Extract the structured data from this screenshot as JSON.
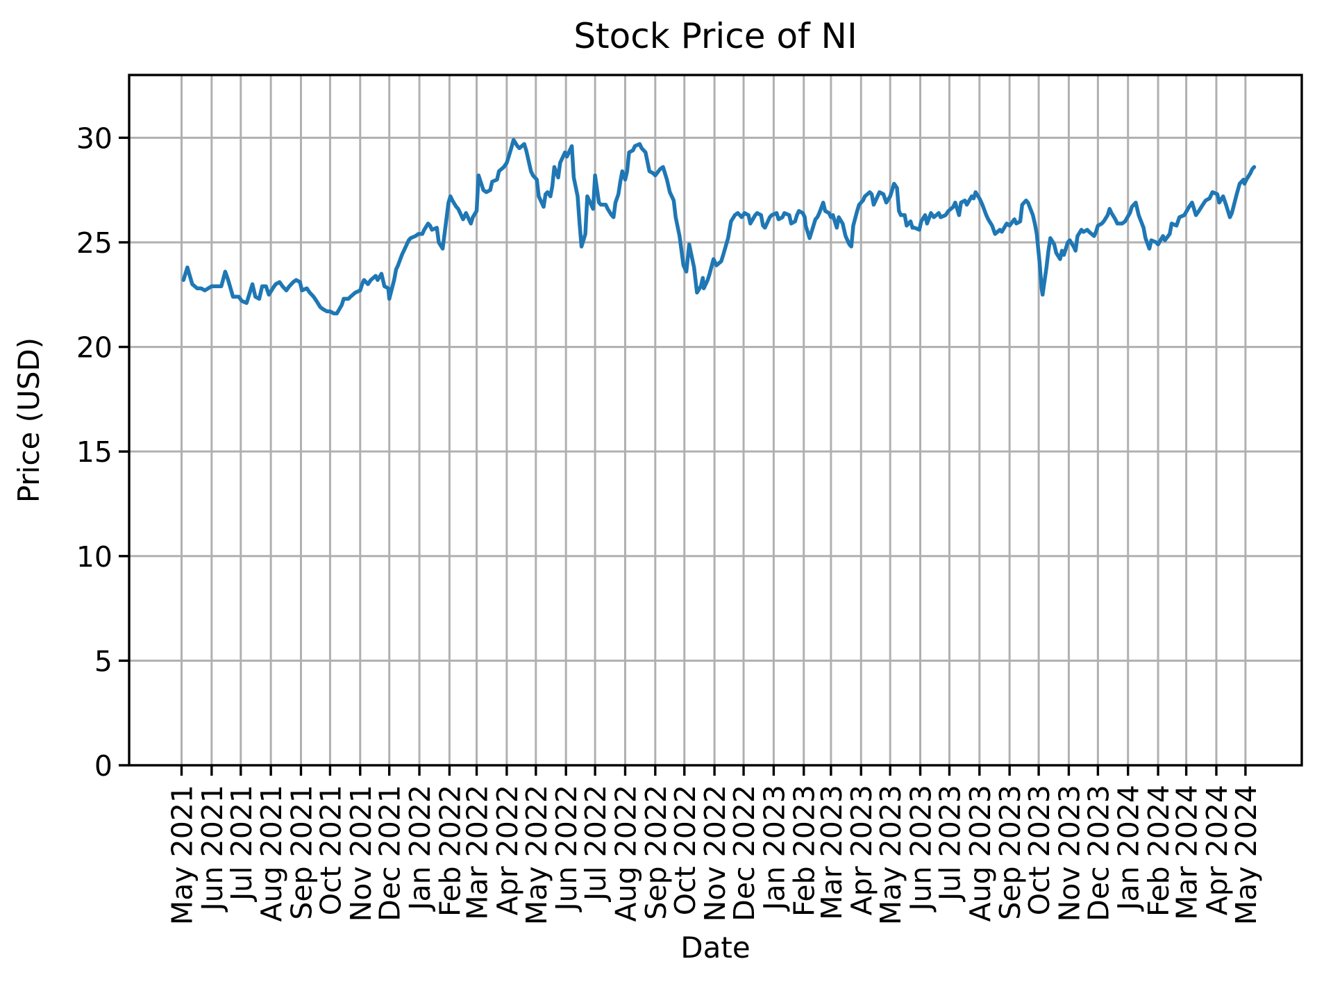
{
  "title": "Stock Price of NI",
  "xlabel": "Date",
  "ylabel": "Price (USD)",
  "chart_data": {
    "type": "line",
    "series_name": "NI",
    "line_color": "#1f77b4",
    "grid_color": "#b0b0b0",
    "axis_color": "#000000",
    "grid": true,
    "legend": "none",
    "y_ticks": [
      0,
      5,
      10,
      15,
      20,
      25,
      30
    ],
    "x_tick_labels": [
      "May 2021",
      "Jun 2021",
      "Jul 2021",
      "Aug 2021",
      "Sep 2021",
      "Oct 2021",
      "Nov 2021",
      "Dec 2021",
      "Jan 2022",
      "Feb 2022",
      "Mar 2022",
      "Apr 2022",
      "May 2022",
      "Jun 2022",
      "Jul 2022",
      "Aug 2022",
      "Sep 2022",
      "Oct 2022",
      "Nov 2022",
      "Dec 2022",
      "Jan 2023",
      "Feb 2023",
      "Mar 2023",
      "Apr 2023",
      "May 2023",
      "Jun 2023",
      "Jul 2023",
      "Aug 2023",
      "Sep 2023",
      "Oct 2023",
      "Nov 2023",
      "Dec 2023",
      "Jan 2024",
      "Feb 2024",
      "Mar 2024",
      "Apr 2024",
      "May 2024"
    ],
    "x_range": [
      "2021-03-08",
      "2024-06-28"
    ],
    "y_range": [
      0,
      33
    ],
    "points": [
      [
        "2021-05-03",
        23.2
      ],
      [
        "2021-05-07",
        23.8
      ],
      [
        "2021-05-12",
        23.0
      ],
      [
        "2021-05-17",
        22.8
      ],
      [
        "2021-05-21",
        22.8
      ],
      [
        "2021-05-25",
        22.7
      ],
      [
        "2021-06-01",
        22.9
      ],
      [
        "2021-06-07",
        22.9
      ],
      [
        "2021-06-11",
        22.9
      ],
      [
        "2021-06-15",
        23.6
      ],
      [
        "2021-06-18",
        23.2
      ],
      [
        "2021-06-23",
        22.4
      ],
      [
        "2021-06-29",
        22.4
      ],
      [
        "2021-07-02",
        22.2
      ],
      [
        "2021-07-07",
        22.1
      ],
      [
        "2021-07-13",
        23.0
      ],
      [
        "2021-07-16",
        22.4
      ],
      [
        "2021-07-20",
        22.3
      ],
      [
        "2021-07-23",
        22.9
      ],
      [
        "2021-07-27",
        22.9
      ],
      [
        "2021-07-30",
        22.5
      ],
      [
        "2021-08-03",
        22.8
      ],
      [
        "2021-08-06",
        23.0
      ],
      [
        "2021-08-10",
        23.1
      ],
      [
        "2021-08-13",
        22.9
      ],
      [
        "2021-08-17",
        22.7
      ],
      [
        "2021-08-20",
        22.9
      ],
      [
        "2021-08-24",
        23.1
      ],
      [
        "2021-08-27",
        23.2
      ],
      [
        "2021-08-31",
        23.1
      ],
      [
        "2021-09-02",
        22.7
      ],
      [
        "2021-09-07",
        22.8
      ],
      [
        "2021-09-10",
        22.6
      ],
      [
        "2021-09-14",
        22.4
      ],
      [
        "2021-09-17",
        22.2
      ],
      [
        "2021-09-21",
        21.9
      ],
      [
        "2021-09-24",
        21.8
      ],
      [
        "2021-09-28",
        21.7
      ],
      [
        "2021-10-01",
        21.7
      ],
      [
        "2021-10-05",
        21.6
      ],
      [
        "2021-10-08",
        21.6
      ],
      [
        "2021-10-13",
        22.0
      ],
      [
        "2021-10-15",
        22.3
      ],
      [
        "2021-10-20",
        22.3
      ],
      [
        "2021-10-22",
        22.4
      ],
      [
        "2021-10-27",
        22.6
      ],
      [
        "2021-11-01",
        22.7
      ],
      [
        "2021-11-03",
        23.0
      ],
      [
        "2021-11-05",
        23.2
      ],
      [
        "2021-11-09",
        23.0
      ],
      [
        "2021-11-12",
        23.2
      ],
      [
        "2021-11-17",
        23.4
      ],
      [
        "2021-11-19",
        23.2
      ],
      [
        "2021-11-23",
        23.5
      ],
      [
        "2021-11-26",
        22.9
      ],
      [
        "2021-11-30",
        22.8
      ],
      [
        "2021-12-01",
        22.3
      ],
      [
        "2021-12-06",
        23.2
      ],
      [
        "2021-12-08",
        23.7
      ],
      [
        "2021-12-10",
        23.9
      ],
      [
        "2021-12-14",
        24.4
      ],
      [
        "2021-12-17",
        24.7
      ],
      [
        "2021-12-21",
        25.1
      ],
      [
        "2021-12-23",
        25.2
      ],
      [
        "2021-12-28",
        25.3
      ],
      [
        "2021-12-31",
        25.4
      ],
      [
        "2022-01-04",
        25.4
      ],
      [
        "2022-01-06",
        25.6
      ],
      [
        "2022-01-10",
        25.9
      ],
      [
        "2022-01-12",
        25.8
      ],
      [
        "2022-01-14",
        25.6
      ],
      [
        "2022-01-19",
        25.7
      ],
      [
        "2022-01-21",
        25.0
      ],
      [
        "2022-01-25",
        24.7
      ],
      [
        "2022-01-28",
        25.8
      ],
      [
        "2022-01-31",
        26.9
      ],
      [
        "2022-02-02",
        27.2
      ],
      [
        "2022-02-04",
        27.0
      ],
      [
        "2022-02-08",
        26.7
      ],
      [
        "2022-02-10",
        26.6
      ],
      [
        "2022-02-15",
        26.1
      ],
      [
        "2022-02-18",
        26.4
      ],
      [
        "2022-02-23",
        25.9
      ],
      [
        "2022-02-25",
        26.2
      ],
      [
        "2022-03-01",
        26.5
      ],
      [
        "2022-03-03",
        28.2
      ],
      [
        "2022-03-08",
        27.5
      ],
      [
        "2022-03-11",
        27.4
      ],
      [
        "2022-03-15",
        27.5
      ],
      [
        "2022-03-17",
        27.9
      ],
      [
        "2022-03-22",
        28.0
      ],
      [
        "2022-03-24",
        28.4
      ],
      [
        "2022-03-29",
        28.6
      ],
      [
        "2022-04-01",
        28.8
      ],
      [
        "2022-04-05",
        29.4
      ],
      [
        "2022-04-08",
        29.9
      ],
      [
        "2022-04-12",
        29.6
      ],
      [
        "2022-04-14",
        29.5
      ],
      [
        "2022-04-19",
        29.7
      ],
      [
        "2022-04-21",
        29.4
      ],
      [
        "2022-04-26",
        28.4
      ],
      [
        "2022-04-28",
        28.2
      ],
      [
        "2022-05-02",
        28.0
      ],
      [
        "2022-05-04",
        27.2
      ],
      [
        "2022-05-09",
        26.7
      ],
      [
        "2022-05-11",
        27.3
      ],
      [
        "2022-05-13",
        27.4
      ],
      [
        "2022-05-16",
        27.2
      ],
      [
        "2022-05-18",
        27.7
      ],
      [
        "2022-05-20",
        28.6
      ],
      [
        "2022-05-24",
        28.1
      ],
      [
        "2022-05-26",
        28.8
      ],
      [
        "2022-05-31",
        29.3
      ],
      [
        "2022-06-02",
        29.1
      ],
      [
        "2022-06-07",
        29.6
      ],
      [
        "2022-06-09",
        28.1
      ],
      [
        "2022-06-13",
        27.2
      ],
      [
        "2022-06-15",
        25.9
      ],
      [
        "2022-06-17",
        24.8
      ],
      [
        "2022-06-21",
        25.4
      ],
      [
        "2022-06-23",
        27.2
      ],
      [
        "2022-06-27",
        26.8
      ],
      [
        "2022-06-29",
        26.6
      ],
      [
        "2022-07-01",
        28.2
      ],
      [
        "2022-07-05",
        26.9
      ],
      [
        "2022-07-07",
        26.8
      ],
      [
        "2022-07-12",
        26.8
      ],
      [
        "2022-07-14",
        26.6
      ],
      [
        "2022-07-18",
        26.3
      ],
      [
        "2022-07-20",
        26.2
      ],
      [
        "2022-07-22",
        26.9
      ],
      [
        "2022-07-25",
        27.3
      ],
      [
        "2022-07-27",
        27.9
      ],
      [
        "2022-07-29",
        28.4
      ],
      [
        "2022-08-01",
        28.0
      ],
      [
        "2022-08-03",
        28.4
      ],
      [
        "2022-08-05",
        29.3
      ],
      [
        "2022-08-09",
        29.4
      ],
      [
        "2022-08-11",
        29.6
      ],
      [
        "2022-08-16",
        29.7
      ],
      [
        "2022-08-18",
        29.5
      ],
      [
        "2022-08-22",
        29.3
      ],
      [
        "2022-08-26",
        28.4
      ],
      [
        "2022-08-30",
        28.3
      ],
      [
        "2022-09-01",
        28.2
      ],
      [
        "2022-09-06",
        28.5
      ],
      [
        "2022-09-09",
        28.6
      ],
      [
        "2022-09-13",
        28.0
      ],
      [
        "2022-09-16",
        27.4
      ],
      [
        "2022-09-20",
        27.0
      ],
      [
        "2022-09-22",
        26.2
      ],
      [
        "2022-09-26",
        25.3
      ],
      [
        "2022-09-28",
        24.6
      ],
      [
        "2022-09-30",
        23.9
      ],
      [
        "2022-10-03",
        23.6
      ],
      [
        "2022-10-06",
        24.9
      ],
      [
        "2022-10-11",
        23.8
      ],
      [
        "2022-10-13",
        23.0
      ],
      [
        "2022-10-14",
        22.6
      ],
      [
        "2022-10-18",
        22.9
      ],
      [
        "2022-10-20",
        23.3
      ],
      [
        "2022-10-21",
        22.8
      ],
      [
        "2022-10-25",
        23.2
      ],
      [
        "2022-10-27",
        23.5
      ],
      [
        "2022-10-31",
        24.2
      ],
      [
        "2022-11-03",
        23.9
      ],
      [
        "2022-11-08",
        24.1
      ],
      [
        "2022-11-10",
        24.4
      ],
      [
        "2022-11-15",
        25.2
      ],
      [
        "2022-11-18",
        26.0
      ],
      [
        "2022-11-22",
        26.3
      ],
      [
        "2022-11-25",
        26.4
      ],
      [
        "2022-11-29",
        26.2
      ],
      [
        "2022-12-02",
        26.4
      ],
      [
        "2022-12-06",
        26.3
      ],
      [
        "2022-12-08",
        25.9
      ],
      [
        "2022-12-13",
        26.3
      ],
      [
        "2022-12-15",
        26.4
      ],
      [
        "2022-12-19",
        26.3
      ],
      [
        "2022-12-21",
        25.8
      ],
      [
        "2022-12-23",
        25.7
      ],
      [
        "2022-12-28",
        26.2
      ],
      [
        "2022-12-30",
        26.3
      ],
      [
        "2023-01-04",
        26.4
      ],
      [
        "2023-01-06",
        26.1
      ],
      [
        "2023-01-10",
        26.2
      ],
      [
        "2023-01-12",
        26.4
      ],
      [
        "2023-01-17",
        26.3
      ],
      [
        "2023-01-19",
        25.9
      ],
      [
        "2023-01-23",
        26.0
      ],
      [
        "2023-01-25",
        26.3
      ],
      [
        "2023-01-27",
        26.5
      ],
      [
        "2023-01-31",
        26.4
      ],
      [
        "2023-02-02",
        26.2
      ],
      [
        "2023-02-03",
        25.8
      ],
      [
        "2023-02-07",
        25.2
      ],
      [
        "2023-02-09",
        25.5
      ],
      [
        "2023-02-13",
        26.1
      ],
      [
        "2023-02-15",
        26.2
      ],
      [
        "2023-02-17",
        26.4
      ],
      [
        "2023-02-21",
        26.9
      ],
      [
        "2023-02-23",
        26.5
      ],
      [
        "2023-02-27",
        26.4
      ],
      [
        "2023-03-01",
        26.2
      ],
      [
        "2023-03-03",
        26.3
      ],
      [
        "2023-03-07",
        25.7
      ],
      [
        "2023-03-09",
        26.2
      ],
      [
        "2023-03-13",
        25.9
      ],
      [
        "2023-03-16",
        25.3
      ],
      [
        "2023-03-20",
        24.9
      ],
      [
        "2023-03-22",
        24.8
      ],
      [
        "2023-03-24",
        25.8
      ],
      [
        "2023-03-28",
        26.5
      ],
      [
        "2023-03-30",
        26.8
      ],
      [
        "2023-04-03",
        27.0
      ],
      [
        "2023-04-05",
        27.2
      ],
      [
        "2023-04-10",
        27.4
      ],
      [
        "2023-04-12",
        27.3
      ],
      [
        "2023-04-14",
        26.8
      ],
      [
        "2023-04-18",
        27.2
      ],
      [
        "2023-04-20",
        27.4
      ],
      [
        "2023-04-24",
        27.3
      ],
      [
        "2023-04-27",
        26.9
      ],
      [
        "2023-05-01",
        27.2
      ],
      [
        "2023-05-03",
        27.5
      ],
      [
        "2023-05-05",
        27.8
      ],
      [
        "2023-05-08",
        27.6
      ],
      [
        "2023-05-10",
        26.5
      ],
      [
        "2023-05-12",
        26.3
      ],
      [
        "2023-05-16",
        26.3
      ],
      [
        "2023-05-18",
        25.8
      ],
      [
        "2023-05-22",
        26.0
      ],
      [
        "2023-05-24",
        25.7
      ],
      [
        "2023-05-26",
        25.7
      ],
      [
        "2023-05-31",
        25.6
      ],
      [
        "2023-06-02",
        26.0
      ],
      [
        "2023-06-06",
        26.3
      ],
      [
        "2023-06-08",
        25.9
      ],
      [
        "2023-06-12",
        26.4
      ],
      [
        "2023-06-15",
        26.2
      ],
      [
        "2023-06-20",
        26.4
      ],
      [
        "2023-06-22",
        26.2
      ],
      [
        "2023-06-27",
        26.3
      ],
      [
        "2023-06-30",
        26.5
      ],
      [
        "2023-07-05",
        26.7
      ],
      [
        "2023-07-07",
        26.9
      ],
      [
        "2023-07-11",
        26.3
      ],
      [
        "2023-07-13",
        26.9
      ],
      [
        "2023-07-17",
        27.0
      ],
      [
        "2023-07-19",
        26.8
      ],
      [
        "2023-07-24",
        27.2
      ],
      [
        "2023-07-26",
        27.1
      ],
      [
        "2023-07-28",
        27.4
      ],
      [
        "2023-08-01",
        27.1
      ],
      [
        "2023-08-04",
        26.8
      ],
      [
        "2023-08-08",
        26.3
      ],
      [
        "2023-08-10",
        26.1
      ],
      [
        "2023-08-14",
        25.8
      ],
      [
        "2023-08-17",
        25.4
      ],
      [
        "2023-08-22",
        25.6
      ],
      [
        "2023-08-24",
        25.5
      ],
      [
        "2023-08-29",
        25.9
      ],
      [
        "2023-09-01",
        25.8
      ],
      [
        "2023-09-06",
        26.1
      ],
      [
        "2023-09-08",
        25.9
      ],
      [
        "2023-09-12",
        26.0
      ],
      [
        "2023-09-14",
        26.8
      ],
      [
        "2023-09-18",
        27.0
      ],
      [
        "2023-09-20",
        26.9
      ],
      [
        "2023-09-25",
        26.3
      ],
      [
        "2023-09-27",
        25.9
      ],
      [
        "2023-09-29",
        25.4
      ],
      [
        "2023-10-02",
        24.0
      ],
      [
        "2023-10-04",
        22.8
      ],
      [
        "2023-10-05",
        22.5
      ],
      [
        "2023-10-09",
        23.8
      ],
      [
        "2023-10-11",
        24.6
      ],
      [
        "2023-10-13",
        25.2
      ],
      [
        "2023-10-17",
        24.9
      ],
      [
        "2023-10-19",
        24.5
      ],
      [
        "2023-10-23",
        24.2
      ],
      [
        "2023-10-25",
        24.6
      ],
      [
        "2023-10-27",
        24.4
      ],
      [
        "2023-10-31",
        25.0
      ],
      [
        "2023-11-02",
        25.1
      ],
      [
        "2023-11-06",
        24.8
      ],
      [
        "2023-11-08",
        24.6
      ],
      [
        "2023-11-10",
        25.3
      ],
      [
        "2023-11-14",
        25.6
      ],
      [
        "2023-11-16",
        25.5
      ],
      [
        "2023-11-20",
        25.6
      ],
      [
        "2023-11-22",
        25.5
      ],
      [
        "2023-11-27",
        25.3
      ],
      [
        "2023-11-29",
        25.5
      ],
      [
        "2023-12-01",
        25.8
      ],
      [
        "2023-12-05",
        25.9
      ],
      [
        "2023-12-07",
        26.0
      ],
      [
        "2023-12-11",
        26.3
      ],
      [
        "2023-12-13",
        26.6
      ],
      [
        "2023-12-15",
        26.4
      ],
      [
        "2023-12-19",
        26.1
      ],
      [
        "2023-12-21",
        25.9
      ],
      [
        "2023-12-26",
        25.9
      ],
      [
        "2023-12-29",
        26.0
      ],
      [
        "2024-01-03",
        26.4
      ],
      [
        "2024-01-05",
        26.7
      ],
      [
        "2024-01-09",
        26.9
      ],
      [
        "2024-01-12",
        26.3
      ],
      [
        "2024-01-17",
        25.7
      ],
      [
        "2024-01-19",
        25.2
      ],
      [
        "2024-01-23",
        24.7
      ],
      [
        "2024-01-25",
        25.1
      ],
      [
        "2024-01-30",
        25.0
      ],
      [
        "2024-02-01",
        24.9
      ],
      [
        "2024-02-06",
        25.3
      ],
      [
        "2024-02-08",
        25.1
      ],
      [
        "2024-02-13",
        25.4
      ],
      [
        "2024-02-15",
        25.9
      ],
      [
        "2024-02-20",
        25.8
      ],
      [
        "2024-02-23",
        26.2
      ],
      [
        "2024-02-28",
        26.3
      ],
      [
        "2024-03-04",
        26.7
      ],
      [
        "2024-03-07",
        26.9
      ],
      [
        "2024-03-11",
        26.3
      ],
      [
        "2024-03-14",
        26.5
      ],
      [
        "2024-03-18",
        26.8
      ],
      [
        "2024-03-21",
        27.0
      ],
      [
        "2024-03-25",
        27.1
      ],
      [
        "2024-03-28",
        27.4
      ],
      [
        "2024-04-02",
        27.3
      ],
      [
        "2024-04-04",
        26.9
      ],
      [
        "2024-04-08",
        27.2
      ],
      [
        "2024-04-11",
        26.8
      ],
      [
        "2024-04-15",
        26.2
      ],
      [
        "2024-04-17",
        26.4
      ],
      [
        "2024-04-22",
        27.3
      ],
      [
        "2024-04-25",
        27.8
      ],
      [
        "2024-04-29",
        28.0
      ],
      [
        "2024-04-30",
        27.8
      ],
      [
        "2024-05-02",
        28.0
      ],
      [
        "2024-05-06",
        28.3
      ],
      [
        "2024-05-08",
        28.5
      ],
      [
        "2024-05-10",
        28.6
      ]
    ]
  }
}
